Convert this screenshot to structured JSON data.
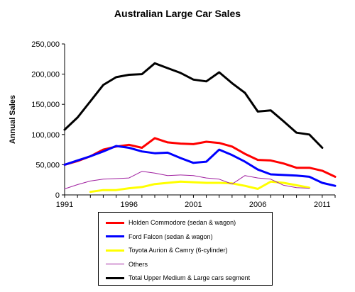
{
  "chart_data": {
    "type": "line",
    "title": "Australian Large Car Sales",
    "xlabel": "",
    "ylabel": "Annual Sales",
    "xlim": [
      1991,
      2012
    ],
    "ylim": [
      0,
      250000
    ],
    "x_ticks": [
      "1991",
      "1996",
      "2001",
      "2006",
      "2011"
    ],
    "y_ticks": [
      "0",
      "50,000",
      "100,000",
      "150,000",
      "200,000",
      "250,000"
    ],
    "grid": false,
    "legend_position": "bottom",
    "x": [
      1991,
      1992,
      1993,
      1994,
      1995,
      1996,
      1997,
      1998,
      1999,
      2000,
      2001,
      2002,
      2003,
      2004,
      2005,
      2006,
      2007,
      2008,
      2009,
      2010,
      2011,
      2012
    ],
    "series": [
      {
        "name": "Holden Commodore (sedan & wagon)",
        "color": "#ff0000",
        "width": 3,
        "values": [
          50000,
          56000,
          64000,
          75000,
          80000,
          83000,
          78000,
          94000,
          87000,
          85000,
          84000,
          88000,
          86000,
          80000,
          68000,
          58000,
          57000,
          52000,
          45000,
          45000,
          40000,
          30000
        ]
      },
      {
        "name": "Ford Falcon (sedan & wagon)",
        "color": "#0000ff",
        "width": 3,
        "values": [
          50000,
          57000,
          64000,
          72000,
          81000,
          78000,
          72000,
          69000,
          70000,
          61000,
          53000,
          55000,
          75000,
          66000,
          55000,
          42000,
          34000,
          33000,
          32000,
          30000,
          20000,
          15000
        ]
      },
      {
        "name": "Toyota Aurion & Camry (6-cylinder)",
        "color": "#ffff00",
        "width": 3,
        "values": [
          null,
          null,
          5000,
          8000,
          8000,
          11000,
          13000,
          18000,
          20000,
          22000,
          21000,
          20000,
          20000,
          19000,
          15000,
          10000,
          22000,
          20000,
          16000,
          12000,
          null,
          null
        ]
      },
      {
        "name": "Others",
        "color": "#a020a0",
        "width": 1,
        "values": [
          10000,
          17000,
          23000,
          26000,
          27000,
          28000,
          39000,
          36000,
          32000,
          33000,
          32000,
          28000,
          26000,
          18000,
          32000,
          28000,
          26000,
          16000,
          12000,
          11000,
          null,
          null
        ]
      },
      {
        "name": "Total Upper Medium & Large cars segment",
        "color": "#000000",
        "width": 3,
        "values": [
          108000,
          128000,
          155000,
          182000,
          195000,
          199000,
          200000,
          218000,
          210000,
          202000,
          191000,
          188000,
          203000,
          185000,
          169000,
          138000,
          140000,
          122000,
          103000,
          100000,
          78000,
          null
        ]
      }
    ]
  }
}
